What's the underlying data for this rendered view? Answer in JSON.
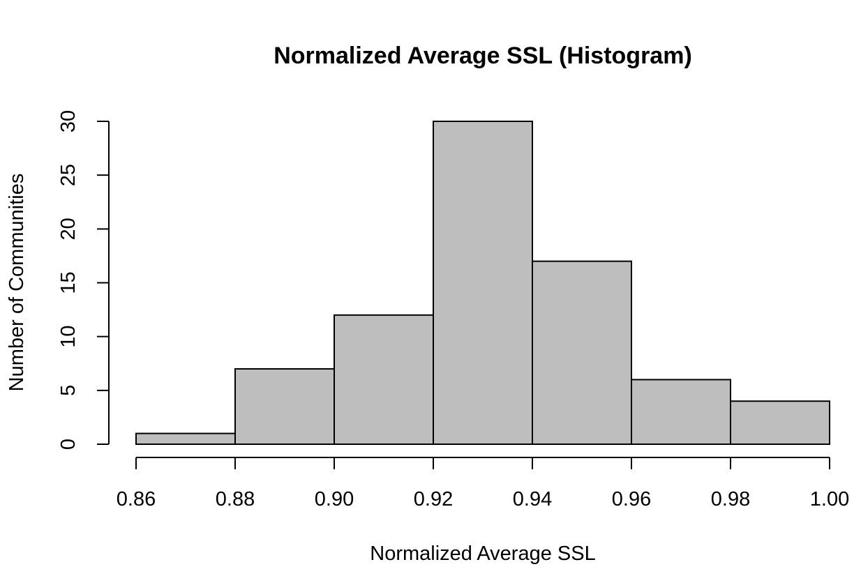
{
  "chart_data": {
    "type": "bar",
    "title": "Normalized Average SSL (Histogram)",
    "xlabel": "Normalized Average SSL",
    "ylabel": "Number of Communities",
    "bins": [
      {
        "start": 0.86,
        "end": 0.88,
        "count": 1
      },
      {
        "start": 0.88,
        "end": 0.9,
        "count": 7
      },
      {
        "start": 0.9,
        "end": 0.92,
        "count": 12
      },
      {
        "start": 0.92,
        "end": 0.94,
        "count": 30
      },
      {
        "start": 0.94,
        "end": 0.96,
        "count": 17
      },
      {
        "start": 0.96,
        "end": 0.98,
        "count": 6
      },
      {
        "start": 0.98,
        "end": 1.0,
        "count": 4
      }
    ],
    "xlim": [
      0.86,
      1.0
    ],
    "ylim": [
      0,
      30
    ],
    "x_ticks": [
      "0.86",
      "0.88",
      "0.90",
      "0.92",
      "0.94",
      "0.96",
      "0.98",
      "1.00"
    ],
    "y_ticks": [
      "0",
      "5",
      "10",
      "15",
      "20",
      "25",
      "30"
    ],
    "grid": false,
    "colors": {
      "bar_fill": "#bebebe",
      "bar_stroke": "#000000"
    }
  }
}
